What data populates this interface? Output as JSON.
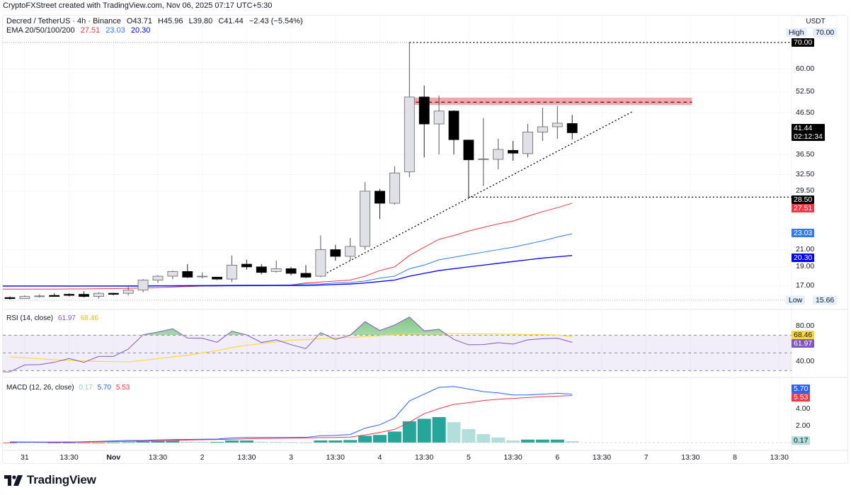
{
  "attribution": "CryptoFXStreet created with TradingView.com, Nov 06, 2025 07:17 UTC+5:30",
  "legend": {
    "symbol": "Decred / TetherUS · 4h · Binance",
    "open": "O43.71",
    "high": "H45.96",
    "low": "L39.80",
    "close": "C41.44",
    "change": "−2.43 (−5.54%)",
    "ema_label": "EMA 20/50/100/200",
    "ema_values": [
      "27.51",
      "23.03",
      "20.30"
    ]
  },
  "currency": "USDT",
  "colors": {
    "ema20": "#f23645",
    "ema50": "#2f7bf5",
    "ema100": "#0000ff",
    "rsi": "#7e57c2",
    "rsi_ma": "#fdd835",
    "macd": "#2962ff",
    "signal": "#f23645",
    "hist_up_strong": "#26a69a",
    "hist_up_weak": "#b2dfdb",
    "hist_down_strong": "#ff5252",
    "hist_down_weak": "#ffcdd2",
    "bull_body": "#e0e1e6",
    "bear_body": "#000000",
    "resistance_zone": "#f7a3aa"
  },
  "price_axis": {
    "scale": "log",
    "ticks": [
      "60.00",
      "52.50",
      "46.50",
      "36.50",
      "32.50",
      "29.50",
      "21.00",
      "19.00",
      "17.00"
    ],
    "tick_values": [
      60,
      52.5,
      46.5,
      36.5,
      32.5,
      29.5,
      21,
      19,
      17
    ]
  },
  "price_tags": [
    {
      "label": "High",
      "value": "70.00",
      "num": 70,
      "style": "hl"
    },
    {
      "value": "70.00",
      "num": 70,
      "color": "#000000"
    },
    {
      "value": "41.44",
      "sub": "02:12:34",
      "num": 41.44,
      "color": "#000000"
    },
    {
      "value": "28.50",
      "num": 28.5,
      "color": "#000000"
    },
    {
      "value": "27.51",
      "num": 27.51,
      "color": "#f23645"
    },
    {
      "value": "23.03",
      "num": 23.03,
      "color": "#2f7bf5"
    },
    {
      "value": "20.30",
      "num": 20.3,
      "color": "#0000ff"
    },
    {
      "label": "Low",
      "value": "15.66",
      "num": 15.66,
      "style": "hl"
    }
  ],
  "rsi_axis": {
    "ticks": [
      "80.00",
      "40.00"
    ],
    "tick_values": [
      80,
      40
    ]
  },
  "rsi_tags": [
    {
      "value": "68.46",
      "num": 68.46,
      "color": "#fdd835",
      "text_color": "#131722"
    },
    {
      "value": "61.97",
      "num": 61.97,
      "color": "#7e57c2"
    }
  ],
  "macd_axis": {
    "ticks": [
      "4.00",
      "2.00"
    ],
    "tick_values": [
      4,
      2
    ]
  },
  "macd_tags": [
    {
      "value": "5.70",
      "num": 5.7,
      "color": "#2962ff"
    },
    {
      "value": "5.53",
      "num": 5.53,
      "color": "#f23645"
    },
    {
      "value": "0.17",
      "num": 0.17,
      "color": "#b2dfdb",
      "text_color": "#131722"
    }
  ],
  "rsi_legend": {
    "label": "RSI (14, close)",
    "rsi": "61.97",
    "ma": "68.46"
  },
  "macd_legend": {
    "label": "MACD (12, 26, close)",
    "hist": "0.17",
    "macd": "5.70",
    "signal": "5.53"
  },
  "x_axis": {
    "labels": [
      "31",
      "13:30",
      "Nov",
      "13:30",
      "2",
      "13:30",
      "3",
      "13:30",
      "4",
      "13:30",
      "5",
      "13:30",
      "6",
      "13:30",
      "7",
      "13:30",
      "8",
      "13:30"
    ],
    "bold": [
      "Nov"
    ]
  },
  "logo": "TradingView",
  "chart_data": [
    {
      "type": "candlestick",
      "interval": "4h",
      "ohlc": [
        [
          15.9,
          16.0,
          15.7,
          15.8
        ],
        [
          15.8,
          16.1,
          15.8,
          16.0
        ],
        [
          16.0,
          16.2,
          15.9,
          16.05
        ],
        [
          16.1,
          16.3,
          16.0,
          16.0
        ],
        [
          16.2,
          16.3,
          16.0,
          16.1
        ],
        [
          16.2,
          16.5,
          15.9,
          16.0
        ],
        [
          16.0,
          16.4,
          15.8,
          16.3
        ],
        [
          16.3,
          16.35,
          16.1,
          16.2
        ],
        [
          16.3,
          16.9,
          16.1,
          16.6
        ],
        [
          16.6,
          17.7,
          16.4,
          17.6
        ],
        [
          17.6,
          18.1,
          17.3,
          18.0
        ],
        [
          18.0,
          18.6,
          17.7,
          18.5
        ],
        [
          18.5,
          19.3,
          17.8,
          17.9
        ],
        [
          17.95,
          18.4,
          17.8,
          18.0
        ],
        [
          17.9,
          17.95,
          17.6,
          17.7
        ],
        [
          17.7,
          20.3,
          17.4,
          19.2
        ],
        [
          19.3,
          19.8,
          18.7,
          19.0
        ],
        [
          19.0,
          19.3,
          18.2,
          18.4
        ],
        [
          18.5,
          19.7,
          18.4,
          18.8
        ],
        [
          18.8,
          19.0,
          18.1,
          18.3
        ],
        [
          18.3,
          19.2,
          17.8,
          17.9
        ],
        [
          18.0,
          22.8,
          17.9,
          21.0
        ],
        [
          21.0,
          21.6,
          19.7,
          20.2
        ],
        [
          20.2,
          22.5,
          19.7,
          21.4
        ],
        [
          21.4,
          31.1,
          21.0,
          29.5
        ],
        [
          29.5,
          29.9,
          25.1,
          27.5
        ],
        [
          27.5,
          34.1,
          27.3,
          32.8
        ],
        [
          33.0,
          70.0,
          32.0,
          51.0
        ],
        [
          51.0,
          54.5,
          35.9,
          43.6
        ],
        [
          43.6,
          51.4,
          36.5,
          47.0
        ],
        [
          47.0,
          47.2,
          36.5,
          39.8
        ],
        [
          39.7,
          39.8,
          28.5,
          35.4
        ],
        [
          35.5,
          45.1,
          30.4,
          35.6
        ],
        [
          35.5,
          40.0,
          33.5,
          37.6
        ],
        [
          37.4,
          39.5,
          35.2,
          36.8
        ],
        [
          36.7,
          43.6,
          35.9,
          41.6
        ],
        [
          41.6,
          47.9,
          39.5,
          42.9
        ],
        [
          42.9,
          48.4,
          40.0,
          43.8
        ],
        [
          43.71,
          45.96,
          39.8,
          41.44
        ]
      ],
      "ema": [
        {
          "name": "EMA 20",
          "values": [
            16.7,
            16.7,
            16.7,
            16.7,
            16.72,
            16.72,
            16.74,
            16.75,
            16.77,
            16.8,
            16.85,
            16.9,
            16.95,
            17.0,
            17.0,
            17.05,
            17.1,
            17.1,
            17.1,
            17.12,
            17.3,
            17.4,
            17.5,
            17.6,
            18.0,
            18.6,
            19.0,
            20.3,
            21.3,
            22.3,
            22.8,
            23.4,
            23.9,
            24.4,
            24.8,
            25.5,
            26.2,
            26.8,
            27.51
          ]
        },
        {
          "name": "EMA 50",
          "values": [
            17.0,
            17.0,
            17.0,
            17.0,
            17.0,
            17.0,
            17.0,
            17.0,
            17.02,
            17.03,
            17.04,
            17.05,
            17.06,
            17.07,
            17.08,
            17.09,
            17.1,
            17.1,
            17.1,
            17.1,
            17.2,
            17.2,
            17.3,
            17.35,
            17.5,
            17.8,
            18.0,
            18.8,
            19.2,
            19.8,
            20.1,
            20.4,
            20.7,
            21.0,
            21.3,
            21.7,
            22.1,
            22.6,
            23.03
          ]
        },
        {
          "name": "EMA 100",
          "values": [
            17.0,
            17.0,
            17.0,
            17.0,
            17.0,
            17.0,
            17.0,
            17.0,
            17.0,
            17.0,
            17.01,
            17.01,
            17.02,
            17.02,
            17.03,
            17.03,
            17.04,
            17.04,
            17.05,
            17.05,
            17.05,
            17.1,
            17.15,
            17.2,
            17.3,
            17.45,
            17.6,
            18.0,
            18.3,
            18.6,
            18.8,
            19.0,
            19.2,
            19.4,
            19.6,
            19.8,
            20.0,
            20.15,
            20.3
          ]
        }
      ],
      "annotations": {
        "high_line": 70.0,
        "support_line": 28.5,
        "low_line": 15.66,
        "resistance_zone": [
          48.7,
          50.8
        ],
        "resistance_mid": 49.5,
        "trendline": {
          "from": {
            "bar": 21,
            "price": 18.0
          },
          "to": {
            "bar": 42.15,
            "price": 47.0
          }
        }
      }
    },
    {
      "type": "line",
      "name": "RSI (14, close)",
      "levels": [
        70,
        50,
        30
      ],
      "rsi": [
        28.5,
        36.4,
        36.7,
        39.3,
        43.6,
        39.3,
        46,
        46,
        54.3,
        70.5,
        73.5,
        77.2,
        66.8,
        66.5,
        62,
        74.5,
        70.3,
        61.7,
        64.7,
        59.3,
        54.8,
        72.9,
        65.2,
        70,
        85.2,
        75.3,
        81.5,
        90.5,
        74.8,
        76.7,
        65.2,
        59.1,
        59.3,
        61.5,
        59.9,
        64.7,
        66,
        66.5,
        61.97
      ],
      "rsi_ma": [
        45.5,
        44.6,
        43.5,
        42.2,
        41.5,
        40.8,
        40.4,
        40.1,
        39.9,
        41.5,
        43.5,
        45.5,
        47.3,
        50,
        52.5,
        56,
        58.5,
        60.5,
        62.5,
        64.3,
        65,
        66,
        66.8,
        67.4,
        68.5,
        69.5,
        70.5,
        71.3,
        71.6,
        71.9,
        71.9,
        71.6,
        71.4,
        71.3,
        71.1,
        70.8,
        70.6,
        70.2,
        68.46
      ]
    },
    {
      "type": "bar",
      "name": "MACD (12, 26, close)",
      "macd": [
        0.05,
        0.05,
        0.05,
        0.05,
        0.05,
        0.1,
        0.15,
        0.2,
        0.25,
        0.25,
        0.32,
        0.36,
        0.38,
        0.4,
        0.42,
        0.55,
        0.6,
        0.6,
        0.6,
        0.6,
        0.62,
        0.8,
        0.85,
        0.95,
        1.7,
        2.1,
        2.9,
        4.9,
        5.7,
        6.5,
        6.6,
        6.3,
        6.0,
        5.85,
        5.6,
        5.6,
        5.7,
        5.8,
        5.7
      ],
      "signal": [
        0.08,
        0.07,
        0.06,
        0.06,
        0.07,
        0.08,
        0.1,
        0.12,
        0.15,
        0.18,
        0.21,
        0.25,
        0.3,
        0.33,
        0.36,
        0.4,
        0.45,
        0.48,
        0.5,
        0.53,
        0.55,
        0.58,
        0.6,
        0.65,
        0.9,
        1.2,
        1.55,
        2.4,
        3.4,
        4.0,
        4.5,
        4.7,
        4.95,
        5.1,
        5.2,
        5.3,
        5.4,
        5.47,
        5.53
      ],
      "histogram": [
        -0.05,
        -0.03,
        -0.02,
        -0.02,
        -0.02,
        -0.02,
        -0.02,
        0.02,
        0.05,
        0.15,
        0.2,
        0.25,
        0.1,
        0.08,
        0.08,
        0.25,
        0.25,
        0.1,
        0.08,
        0.05,
        0.03,
        0.25,
        0.25,
        0.3,
        0.8,
        0.9,
        1.3,
        2.5,
        2.8,
        3.0,
        2.4,
        1.6,
        1.0,
        0.6,
        0.25,
        0.35,
        0.35,
        0.35,
        0.17
      ]
    }
  ]
}
